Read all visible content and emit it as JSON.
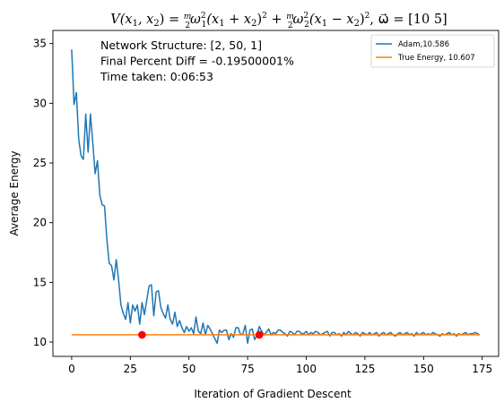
{
  "chart_data": {
    "type": "line",
    "title": "V(x₁, x₂) = (m/2)ω₁²(x₁ + x₂)² + (m/2)ω₂²(x₁ − x₂)², ω⃗ = [10  5]",
    "title_parts": {
      "lhs": "V(x",
      "sub1": "1",
      "sep": ", x",
      "sub2": "2",
      "eq": ") = ",
      "m": "m",
      "two": "2",
      "omega": "ω",
      "sq": "2",
      "term1": "(x",
      "plus": " + x",
      "close": ")",
      "plus_between": " + ",
      "minus": " − x",
      "vec_label": ", ω⃗ = [10  5]"
    },
    "xlabel": "Iteration of Gradient Descent",
    "ylabel": "Average Energy",
    "xlim": [
      -8,
      182
    ],
    "ylim": [
      8.8,
      36.1
    ],
    "x_ticks": [
      0,
      25,
      50,
      75,
      100,
      125,
      150,
      175
    ],
    "y_ticks": [
      10,
      15,
      20,
      25,
      30,
      35
    ],
    "grid": false,
    "legend_position": "top-right",
    "annotations": [
      "Network Structure: [2, 50, 1]",
      "Final Percent Diff = -0.19500001%",
      "Time taken: 0:06:53"
    ],
    "series": [
      {
        "name": "Adam,10.586",
        "color": "#1f77b4",
        "x_start": 0,
        "x_step": 1,
        "values": [
          34.5,
          29.9,
          30.9,
          27.0,
          25.6,
          25.3,
          29.1,
          25.9,
          29.1,
          26.7,
          24.1,
          25.2,
          22.3,
          21.5,
          21.4,
          18.6,
          16.6,
          16.4,
          15.2,
          16.9,
          15.2,
          13.1,
          12.4,
          11.9,
          13.3,
          11.6,
          13.1,
          12.6,
          13.1,
          11.5,
          13.3,
          12.3,
          13.5,
          14.7,
          14.8,
          12.2,
          14.2,
          14.3,
          12.9,
          12.4,
          12.0,
          13.1,
          11.9,
          11.5,
          12.5,
          11.3,
          11.8,
          11.2,
          10.8,
          11.3,
          10.9,
          11.2,
          10.7,
          12.1,
          10.9,
          10.7,
          11.6,
          10.6,
          11.4,
          11.1,
          10.7,
          10.3,
          9.9,
          11.0,
          10.8,
          11.0,
          11.0,
          10.2,
          10.7,
          10.4,
          11.2,
          11.2,
          10.6,
          10.7,
          11.4,
          9.9,
          11.0,
          11.1,
          10.2,
          10.6,
          11.3,
          10.9,
          10.6,
          10.8,
          11.1,
          10.6,
          10.8,
          10.7,
          11.0,
          11.0,
          10.8,
          10.7,
          10.5,
          10.9,
          10.8,
          10.6,
          10.9,
          10.9,
          10.7,
          10.7,
          10.9,
          10.6,
          10.8,
          10.7,
          10.9,
          10.8,
          10.6,
          10.7,
          10.8,
          10.9,
          10.5,
          10.8,
          10.8,
          10.6,
          10.7,
          10.5,
          10.8,
          10.6,
          10.9,
          10.7,
          10.6,
          10.8,
          10.7,
          10.5,
          10.8,
          10.7,
          10.6,
          10.8,
          10.6,
          10.7,
          10.8,
          10.5,
          10.7,
          10.8,
          10.6,
          10.7,
          10.8,
          10.6,
          10.5,
          10.7,
          10.8,
          10.6,
          10.7,
          10.8,
          10.6,
          10.7,
          10.5,
          10.8,
          10.6,
          10.7,
          10.8,
          10.6,
          10.7,
          10.6,
          10.8,
          10.7,
          10.6,
          10.5,
          10.7,
          10.6,
          10.7,
          10.8,
          10.6,
          10.7,
          10.5,
          10.7,
          10.6,
          10.7,
          10.8,
          10.6,
          10.7,
          10.7,
          10.8,
          10.7,
          10.6
        ]
      },
      {
        "name": "True Energy, 10.607",
        "color": "#ff7f0e",
        "x": [
          0,
          174
        ],
        "values": [
          10.607,
          10.607
        ]
      }
    ],
    "markers": {
      "color": "#ff0000",
      "points": [
        {
          "x": 30,
          "y": 10.607
        },
        {
          "x": 80,
          "y": 10.607
        }
      ]
    }
  }
}
